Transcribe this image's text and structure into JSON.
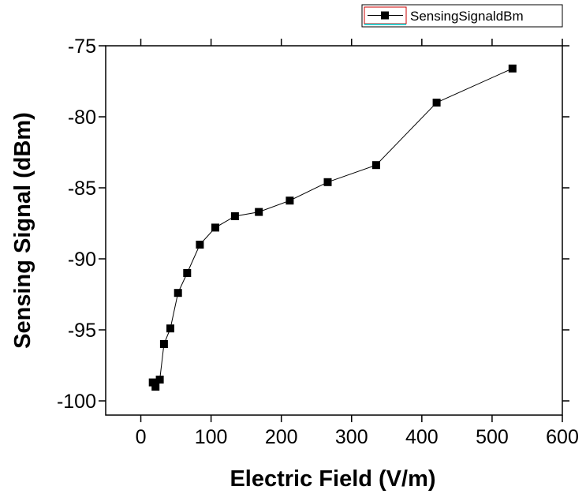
{
  "chart_data": {
    "type": "line",
    "xlabel": "Electric Field (V/m)",
    "ylabel": "Sensing Signal (dBm)",
    "xlim": [
      -50,
      600
    ],
    "ylim": [
      -101,
      -75
    ],
    "xticks": [
      0,
      100,
      200,
      300,
      400,
      500,
      600
    ],
    "yticks": [
      -100,
      -95,
      -90,
      -85,
      -80,
      -75
    ],
    "xtick_labels": [
      "0",
      "100",
      "200",
      "300",
      "400",
      "500",
      "600"
    ],
    "ytick_labels": [
      "-100",
      "-95",
      "-90",
      "-85",
      "-80",
      "-75"
    ],
    "grid": false,
    "legend_position": "top-right",
    "marker": "square",
    "series": [
      {
        "name": "SensingSignaldBm",
        "color": "#000000",
        "x": [
          17,
          21,
          27,
          33,
          42,
          53,
          66,
          84,
          106,
          134,
          168,
          212,
          266,
          335,
          421,
          529
        ],
        "y": [
          -98.7,
          -99.0,
          -98.5,
          -96.0,
          -94.9,
          -92.4,
          -91.0,
          -89.0,
          -87.8,
          -87.0,
          -86.7,
          -85.9,
          -84.6,
          -83.4,
          -79.0,
          -76.6
        ]
      }
    ]
  }
}
